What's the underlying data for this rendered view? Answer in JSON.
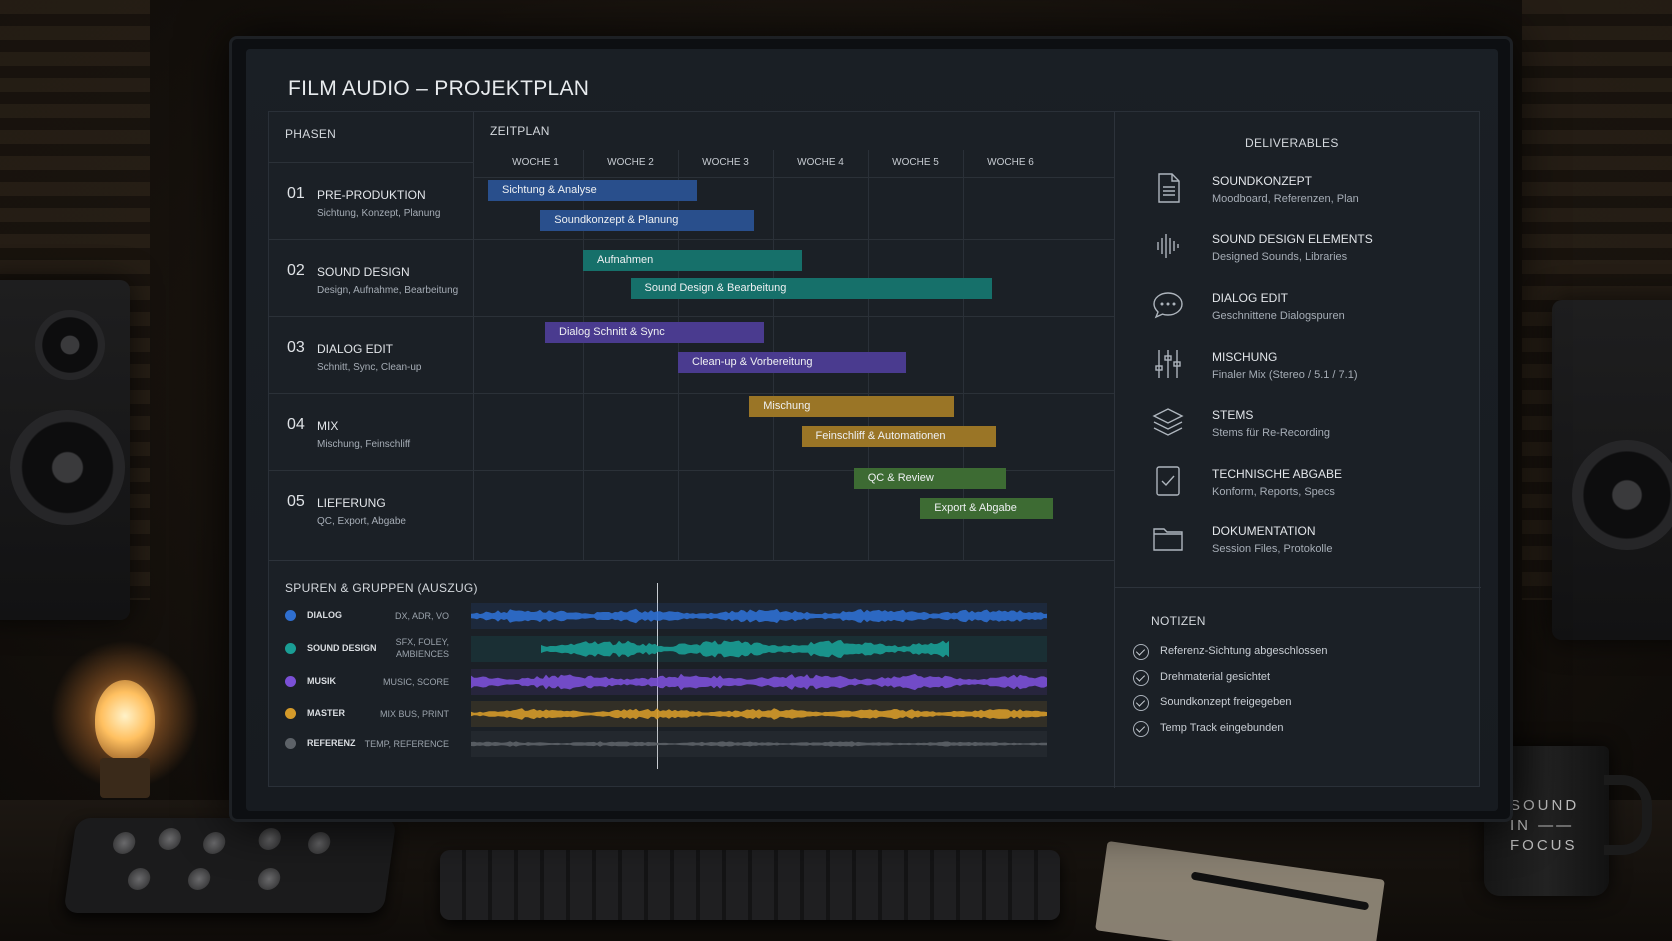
{
  "app": {
    "title": "FILM AUDIO – PROJEKTPLAN"
  },
  "phases": {
    "header": "PHASEN",
    "items": [
      {
        "num": "01",
        "name": "PRE-PRODUKTION",
        "sub": "Sichtung, Konzept, Planung"
      },
      {
        "num": "02",
        "name": "SOUND DESIGN",
        "sub": "Design, Aufnahme, Bearbeitung"
      },
      {
        "num": "03",
        "name": "DIALOG EDIT",
        "sub": "Schnitt, Sync, Clean-up"
      },
      {
        "num": "04",
        "name": "MIX",
        "sub": "Mischung, Feinschliff"
      },
      {
        "num": "05",
        "name": "LIEFERUNG",
        "sub": "QC, Export, Abgabe"
      }
    ]
  },
  "timeline": {
    "header": "ZEITPLAN",
    "weeks": [
      "WOCHE 1",
      "WOCHE 2",
      "WOCHE 3",
      "WOCHE 4",
      "WOCHE 5",
      "WOCHE 6"
    ],
    "tasks": [
      {
        "label": "Sichtung & Analyse",
        "color": "#294f8c",
        "start_week": 1.0,
        "end_week": 3.2
      },
      {
        "label": "Soundkonzept & Planung",
        "color": "#294f8c",
        "start_week": 1.55,
        "end_week": 3.8
      },
      {
        "label": "Aufnahmen",
        "color": "#16706a",
        "start_week": 2.0,
        "end_week": 4.3
      },
      {
        "label": "Sound Design & Bearbeitung",
        "color": "#16706a",
        "start_week": 2.5,
        "end_week": 6.3
      },
      {
        "label": "Dialog Schnitt & Sync",
        "color": "#4a3b8f",
        "start_week": 1.6,
        "end_week": 3.9
      },
      {
        "label": "Clean-up & Vorbereitung",
        "color": "#4a3b8f",
        "start_week": 3.0,
        "end_week": 5.4
      },
      {
        "label": "Mischung",
        "color": "#9a7526",
        "start_week": 3.75,
        "end_week": 5.9
      },
      {
        "label": "Feinschliff & Automationen",
        "color": "#9a7526",
        "start_week": 4.3,
        "end_week": 6.35
      },
      {
        "label": "QC & Review",
        "color": "#3d6b33",
        "start_week": 4.85,
        "end_week": 6.45
      },
      {
        "label": "Export & Abgabe",
        "color": "#3d6b33",
        "start_week": 5.55,
        "end_week": 6.95
      }
    ]
  },
  "deliverables": {
    "header": "DELIVERABLES",
    "items": [
      {
        "title": "SOUNDKONZEPT",
        "sub": "Moodboard, Referenzen, Plan",
        "icon": "document-icon"
      },
      {
        "title": "SOUND DESIGN ELEMENTS",
        "sub": "Designed Sounds, Libraries",
        "icon": "waveform-icon"
      },
      {
        "title": "DIALOG EDIT",
        "sub": "Geschnittene Dialogspuren",
        "icon": "speech-bubble-icon"
      },
      {
        "title": "MISCHUNG",
        "sub": "Finaler Mix (Stereo / 5.1 / 7.1)",
        "icon": "faders-icon"
      },
      {
        "title": "STEMS",
        "sub": "Stems für Re-Recording",
        "icon": "layers-icon"
      },
      {
        "title": "TECHNISCHE ABGABE",
        "sub": "Konform, Reports, Specs",
        "icon": "checked-document-icon"
      },
      {
        "title": "DOKUMENTATION",
        "sub": "Session Files, Protokolle",
        "icon": "folder-icon"
      }
    ]
  },
  "notes": {
    "header": "NOTIZEN",
    "items": [
      "Referenz-Sichtung abgeschlossen",
      "Drehmaterial gesichtet",
      "Soundkonzept freigegeben",
      "Temp Track eingebunden"
    ]
  },
  "tracks": {
    "header": "SPUREN & GRUPPEN (AUSZUG)",
    "items": [
      {
        "name": "DIALOG",
        "tag": "DX, ADR, VO",
        "color": "#2f6fd0"
      },
      {
        "name": "SOUND DESIGN",
        "tag": "SFX, FOLEY, AMBIENCES",
        "color": "#1a9e95"
      },
      {
        "name": "MUSIK",
        "tag": "MUSIC, SCORE",
        "color": "#7b50d6"
      },
      {
        "name": "MASTER",
        "tag": "MIX BUS, PRINT",
        "color": "#d49a2a"
      },
      {
        "name": "REFERENZ",
        "tag": "TEMP, REFERENCE",
        "color": "#5d6268"
      }
    ]
  },
  "mug": {
    "line1": "SOUND",
    "line2": "IN ——",
    "line3": "FOCUS"
  }
}
